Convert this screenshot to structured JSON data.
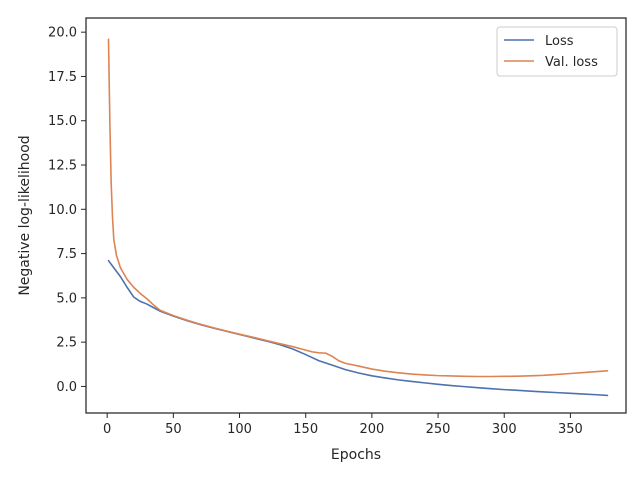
{
  "chart_data": {
    "type": "line",
    "title": "",
    "xlabel": "Epochs",
    "ylabel": "Negative log-likelihood",
    "xlim": [
      -16,
      392
    ],
    "ylim": [
      -1.5,
      20.8
    ],
    "xticks": [
      0,
      50,
      100,
      150,
      200,
      250,
      300,
      350
    ],
    "xtick_labels": [
      "0",
      "50",
      "100",
      "150",
      "200",
      "250",
      "300",
      "350"
    ],
    "yticks": [
      0,
      2.5,
      5,
      7.5,
      10,
      12.5,
      15,
      17.5,
      20
    ],
    "ytick_labels": [
      "0.0",
      "2.5",
      "5.0",
      "7.5",
      "10.0",
      "12.5",
      "15.0",
      "17.5",
      "20.0"
    ],
    "grid": false,
    "legend": "upper-right",
    "series": [
      {
        "name": "Loss",
        "color": "#4c72b0",
        "x": [
          1,
          5,
          10,
          15,
          20,
          25,
          30,
          35,
          40,
          50,
          60,
          70,
          80,
          90,
          100,
          110,
          120,
          130,
          140,
          150,
          160,
          170,
          180,
          190,
          200,
          210,
          220,
          230,
          240,
          250,
          260,
          270,
          280,
          290,
          300,
          310,
          320,
          330,
          340,
          350,
          360,
          370,
          378
        ],
        "y": [
          7.1,
          6.7,
          6.2,
          5.6,
          5.05,
          4.8,
          4.65,
          4.45,
          4.25,
          3.97,
          3.72,
          3.5,
          3.3,
          3.12,
          2.93,
          2.75,
          2.57,
          2.37,
          2.12,
          1.8,
          1.45,
          1.2,
          0.95,
          0.76,
          0.6,
          0.48,
          0.37,
          0.28,
          0.2,
          0.12,
          0.05,
          -0.01,
          -0.07,
          -0.13,
          -0.18,
          -0.22,
          -0.27,
          -0.31,
          -0.35,
          -0.39,
          -0.43,
          -0.47,
          -0.51
        ]
      },
      {
        "name": "Val. loss",
        "color": "#dd8452",
        "x": [
          1,
          2,
          3,
          4,
          5,
          7,
          10,
          15,
          20,
          25,
          30,
          35,
          40,
          50,
          60,
          70,
          80,
          90,
          100,
          110,
          120,
          130,
          140,
          150,
          155,
          160,
          165,
          170,
          175,
          180,
          190,
          200,
          210,
          220,
          230,
          240,
          250,
          260,
          270,
          280,
          290,
          300,
          310,
          320,
          330,
          340,
          350,
          360,
          370,
          378
        ],
        "y": [
          19.6,
          15.0,
          11.5,
          9.6,
          8.3,
          7.4,
          6.7,
          6.05,
          5.6,
          5.25,
          4.95,
          4.6,
          4.3,
          4.0,
          3.75,
          3.52,
          3.32,
          3.13,
          2.95,
          2.78,
          2.6,
          2.42,
          2.25,
          2.05,
          1.95,
          1.9,
          1.88,
          1.7,
          1.45,
          1.3,
          1.15,
          0.98,
          0.86,
          0.77,
          0.7,
          0.65,
          0.61,
          0.59,
          0.57,
          0.56,
          0.56,
          0.57,
          0.58,
          0.6,
          0.63,
          0.68,
          0.73,
          0.78,
          0.84,
          0.88
        ]
      }
    ]
  }
}
